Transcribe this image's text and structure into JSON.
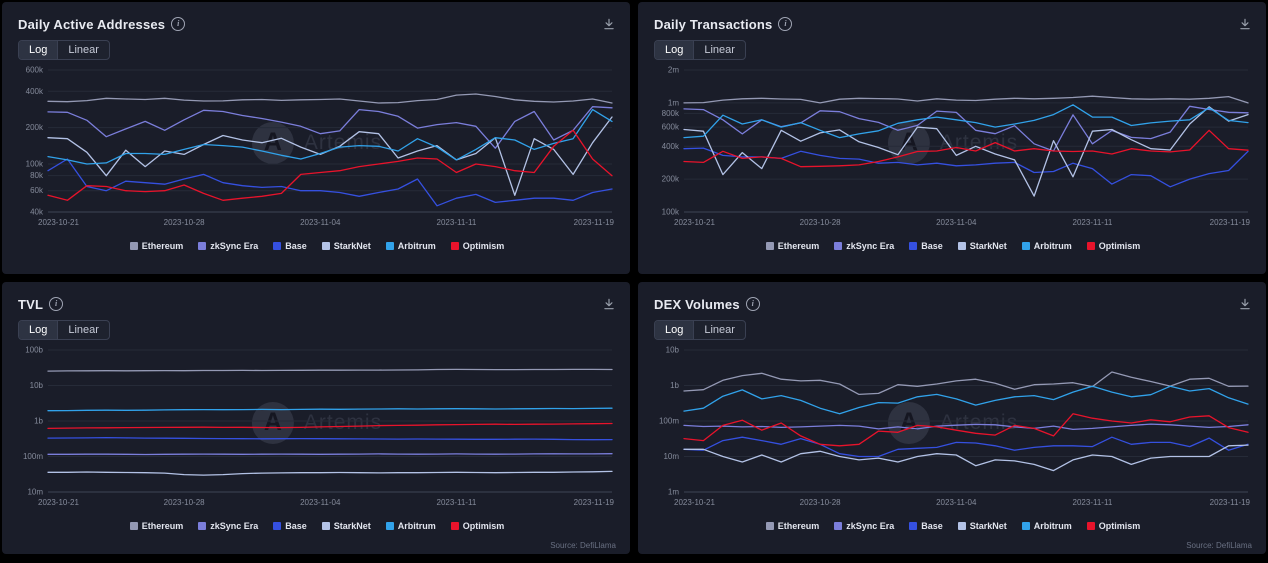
{
  "watermark": {
    "text": "Artemis"
  },
  "icons": {
    "info_glyph": "i"
  },
  "toggle": {
    "log": "Log",
    "linear": "Linear",
    "active": "Log"
  },
  "legend": {
    "position": "bottom-center",
    "items": [
      {
        "name": "Ethereum",
        "color": "#9499b4"
      },
      {
        "name": "zkSync Era",
        "color": "#7b7edb"
      },
      {
        "name": "Base",
        "color": "#3550e0"
      },
      {
        "name": "StarkNet",
        "color": "#b3c2e6"
      },
      {
        "name": "Arbitrum",
        "color": "#31a2ea"
      },
      {
        "name": "Optimism",
        "color": "#e8132b"
      }
    ]
  },
  "panels": [
    {
      "title": "Daily Active Addresses",
      "source": ""
    },
    {
      "title": "Daily Transactions",
      "source": ""
    },
    {
      "title": "TVL",
      "source": "Source: DefiLlama"
    },
    {
      "title": "DEX Volumes",
      "source": "Source: DefiLlama"
    }
  ],
  "dates": [
    "2023-10-21",
    "2023-10-22",
    "2023-10-23",
    "2023-10-24",
    "2023-10-25",
    "2023-10-26",
    "2023-10-27",
    "2023-10-28",
    "2023-10-29",
    "2023-10-30",
    "2023-10-31",
    "2023-11-01",
    "2023-11-02",
    "2023-11-03",
    "2023-11-04",
    "2023-11-05",
    "2023-11-06",
    "2023-11-07",
    "2023-11-08",
    "2023-11-09",
    "2023-11-10",
    "2023-11-11",
    "2023-11-12",
    "2023-11-13",
    "2023-11-14",
    "2023-11-15",
    "2023-11-16",
    "2023-11-17",
    "2023-11-18",
    "2023-11-19"
  ],
  "chart_data": [
    {
      "type": "line",
      "title": "Daily Active Addresses",
      "yscale": "log",
      "grid": true,
      "unit_scale": 1000,
      "y_ticks": [
        {
          "label": "600k",
          "value": 600000
        },
        {
          "label": "400k",
          "value": 400000
        },
        {
          "label": "200k",
          "value": 200000
        },
        {
          "label": "100k",
          "value": 100000
        },
        {
          "label": "80k",
          "value": 80000
        },
        {
          "label": "60k",
          "value": 60000
        },
        {
          "label": "40k",
          "value": 40000
        }
      ],
      "x_ticks": [
        {
          "i": 0,
          "label": "2023-10-21"
        },
        {
          "i": 7,
          "label": "2023-10-28"
        },
        {
          "i": 14,
          "label": "2023-11-04"
        },
        {
          "i": 21,
          "label": "2023-11-11"
        },
        {
          "i": 29,
          "label": "2023-11-19"
        }
      ],
      "series": [
        {
          "name": "Ethereum",
          "values": [
            330,
            328,
            335,
            350,
            345,
            342,
            350,
            338,
            332,
            333,
            340,
            342,
            336,
            340,
            342,
            345,
            332,
            320,
            322,
            335,
            342,
            372,
            380,
            362,
            340,
            330,
            326,
            332,
            345,
            320
          ]
        },
        {
          "name": "zkSync Era",
          "values": [
            270,
            268,
            230,
            168,
            195,
            225,
            190,
            232,
            278,
            272,
            252,
            238,
            222,
            205,
            178,
            188,
            282,
            272,
            248,
            198,
            212,
            220,
            205,
            135,
            225,
            272,
            158,
            190,
            298,
            292
          ]
        },
        {
          "name": "Base",
          "values": [
            88,
            110,
            65,
            60,
            72,
            70,
            68,
            75,
            82,
            70,
            66,
            64,
            65,
            60,
            60,
            58,
            54,
            58,
            62,
            75,
            45,
            52,
            56,
            48,
            50,
            52,
            52,
            50,
            58,
            62
          ]
        },
        {
          "name": "StarkNet",
          "values": [
            165,
            162,
            125,
            80,
            130,
            95,
            128,
            120,
            145,
            172,
            158,
            150,
            163,
            138,
            120,
            140,
            185,
            178,
            112,
            128,
            142,
            108,
            122,
            165,
            55,
            162,
            132,
            82,
            150,
            245
          ]
        },
        {
          "name": "Arbitrum",
          "values": [
            115,
            108,
            100,
            102,
            122,
            122,
            120,
            132,
            145,
            142,
            138,
            128,
            118,
            110,
            122,
            138,
            142,
            140,
            128,
            162,
            138,
            108,
            132,
            165,
            158,
            132,
            148,
            162,
            282,
            225
          ]
        },
        {
          "name": "Optimism",
          "values": [
            55,
            50,
            66,
            65,
            60,
            59,
            60,
            67,
            57,
            50,
            52,
            54,
            57,
            82,
            85,
            88,
            95,
            100,
            105,
            112,
            110,
            85,
            100,
            95,
            88,
            85,
            140,
            190,
            110,
            80
          ]
        }
      ]
    },
    {
      "type": "line",
      "title": "Daily Transactions",
      "yscale": "log",
      "grid": true,
      "unit_scale": 1000,
      "y_ticks": [
        {
          "label": "2m",
          "value": 2000000
        },
        {
          "label": "1m",
          "value": 1000000
        },
        {
          "label": "800k",
          "value": 800000
        },
        {
          "label": "600k",
          "value": 600000
        },
        {
          "label": "400k",
          "value": 400000
        },
        {
          "label": "200k",
          "value": 200000
        },
        {
          "label": "100k",
          "value": 100000
        }
      ],
      "x_ticks": [
        {
          "i": 0,
          "label": "2023-10-21"
        },
        {
          "i": 7,
          "label": "2023-10-28"
        },
        {
          "i": 14,
          "label": "2023-11-04"
        },
        {
          "i": 21,
          "label": "2023-11-11"
        },
        {
          "i": 29,
          "label": "2023-11-19"
        }
      ],
      "series": [
        {
          "name": "Ethereum",
          "values": [
            1000,
            1005,
            1060,
            1090,
            1100,
            1085,
            1075,
            1000,
            1080,
            1100,
            1095,
            1085,
            1040,
            1090,
            1060,
            1050,
            1080,
            1100,
            1090,
            1100,
            1120,
            1150,
            1120,
            1090,
            1080,
            1090,
            1080,
            1100,
            1140,
            1000
          ]
        },
        {
          "name": "zkSync Era",
          "values": [
            880,
            868,
            700,
            520,
            700,
            605,
            655,
            845,
            830,
            718,
            662,
            560,
            622,
            840,
            818,
            560,
            522,
            618,
            422,
            362,
            778,
            422,
            558,
            482,
            470,
            540,
            930,
            870,
            820,
            810
          ]
        },
        {
          "name": "Base",
          "values": [
            380,
            385,
            330,
            320,
            320,
            310,
            360,
            330,
            310,
            305,
            280,
            285,
            270,
            280,
            265,
            270,
            280,
            285,
            230,
            235,
            280,
            250,
            180,
            220,
            215,
            170,
            200,
            225,
            240,
            360
          ]
        },
        {
          "name": "StarkNet",
          "values": [
            570,
            550,
            220,
            350,
            250,
            560,
            445,
            530,
            565,
            440,
            390,
            335,
            600,
            580,
            330,
            400,
            340,
            300,
            140,
            450,
            210,
            550,
            570,
            460,
            380,
            370,
            640,
            920,
            680,
            780
          ]
        },
        {
          "name": "Arbitrum",
          "values": [
            480,
            495,
            770,
            640,
            700,
            600,
            660,
            560,
            480,
            520,
            555,
            650,
            700,
            740,
            700,
            660,
            600,
            640,
            690,
            780,
            960,
            740,
            740,
            620,
            655,
            680,
            700,
            900,
            690,
            660
          ]
        },
        {
          "name": "Optimism",
          "values": [
            290,
            285,
            360,
            310,
            320,
            310,
            260,
            262,
            265,
            270,
            290,
            320,
            358,
            362,
            390,
            362,
            432,
            362,
            380,
            362,
            358,
            362,
            340,
            380,
            362,
            355,
            370,
            560,
            380,
            368
          ]
        }
      ]
    },
    {
      "type": "line",
      "title": "TVL",
      "yscale": "log",
      "grid": true,
      "unit_scale": 1000000,
      "y_ticks": [
        {
          "label": "100b",
          "value": 100000000000
        },
        {
          "label": "10b",
          "value": 10000000000
        },
        {
          "label": "1b",
          "value": 1000000000
        },
        {
          "label": "100m",
          "value": 100000000
        },
        {
          "label": "10m",
          "value": 10000000
        }
      ],
      "x_ticks": [
        {
          "i": 0,
          "label": "2023-10-21"
        },
        {
          "i": 7,
          "label": "2023-10-28"
        },
        {
          "i": 14,
          "label": "2023-11-04"
        },
        {
          "i": 21,
          "label": "2023-11-11"
        },
        {
          "i": 29,
          "label": "2023-11-19"
        }
      ],
      "series": [
        {
          "name": "Ethereum",
          "values": [
            25500,
            25800,
            26000,
            26200,
            26000,
            26100,
            26300,
            26200,
            26400,
            26500,
            26600,
            26500,
            26700,
            26800,
            27000,
            27000,
            27200,
            27100,
            27300,
            27500,
            28200,
            28400,
            28200,
            28000,
            28100,
            28200,
            28300,
            28400,
            28500,
            28300
          ]
        },
        {
          "name": "zkSync Era",
          "values": [
            115,
            115,
            116,
            116,
            115,
            114,
            115,
            116,
            117,
            116,
            115,
            116,
            117,
            116,
            115,
            116,
            117,
            118,
            117,
            116,
            117,
            118,
            117,
            116,
            117,
            118,
            119,
            118,
            118,
            120
          ]
        },
        {
          "name": "Base",
          "values": [
            330,
            332,
            335,
            340,
            335,
            330,
            328,
            325,
            322,
            320,
            318,
            315,
            318,
            320,
            318,
            316,
            314,
            312,
            310,
            312,
            310,
            308,
            306,
            305,
            308,
            310,
            305,
            300,
            298,
            300
          ]
        },
        {
          "name": "StarkNet",
          "values": [
            36,
            36,
            36.5,
            36,
            35.5,
            35,
            34,
            31,
            30,
            31,
            33,
            34,
            34.5,
            35,
            35,
            35.5,
            35,
            34.5,
            35,
            35,
            35.5,
            36,
            35.5,
            35,
            35.5,
            36,
            36,
            36.5,
            37,
            38
          ]
        },
        {
          "name": "Arbitrum",
          "values": [
            1950,
            1960,
            2000,
            2020,
            2000,
            2010,
            2050,
            2080,
            2100,
            2080,
            2100,
            2120,
            2100,
            2120,
            2150,
            2140,
            2160,
            2180,
            2200,
            2180,
            2200,
            2220,
            2200,
            2180,
            2200,
            2220,
            2250,
            2240,
            2260,
            2300
          ]
        },
        {
          "name": "Optimism",
          "values": [
            620,
            630,
            640,
            645,
            650,
            655,
            660,
            665,
            670,
            660,
            665,
            655,
            650,
            660,
            680,
            700,
            720,
            740,
            750,
            760,
            780,
            790,
            800,
            810,
            800,
            810,
            820,
            830,
            840,
            850
          ]
        }
      ]
    },
    {
      "type": "line",
      "title": "DEX Volumes",
      "yscale": "log",
      "grid": true,
      "unit_scale": 1000000,
      "y_ticks": [
        {
          "label": "10b",
          "value": 10000000000
        },
        {
          "label": "1b",
          "value": 1000000000
        },
        {
          "label": "100m",
          "value": 100000000
        },
        {
          "label": "10m",
          "value": 10000000
        },
        {
          "label": "1m",
          "value": 1000000
        }
      ],
      "x_ticks": [
        {
          "i": 0,
          "label": "2023-10-21"
        },
        {
          "i": 7,
          "label": "2023-10-28"
        },
        {
          "i": 14,
          "label": "2023-11-04"
        },
        {
          "i": 21,
          "label": "2023-11-11"
        },
        {
          "i": 29,
          "label": "2023-11-19"
        }
      ],
      "series": [
        {
          "name": "Ethereum",
          "values": [
            700,
            760,
            1400,
            1900,
            2200,
            1500,
            1350,
            1400,
            1100,
            560,
            600,
            1050,
            950,
            1100,
            1350,
            1500,
            1150,
            780,
            1050,
            1100,
            1200,
            930,
            2400,
            1700,
            1300,
            960,
            1500,
            1600,
            950,
            960
          ]
        },
        {
          "name": "zkSync Era",
          "values": [
            75,
            70,
            72,
            68,
            70,
            66,
            68,
            72,
            75,
            72,
            60,
            68,
            60,
            72,
            76,
            80,
            78,
            68,
            62,
            72,
            58,
            62,
            68,
            75,
            82,
            78,
            72,
            66,
            70,
            78
          ]
        },
        {
          "name": "Base",
          "values": [
            16,
            15,
            28,
            35,
            28,
            22,
            32,
            22,
            12,
            10,
            10,
            16,
            17,
            18,
            25,
            24,
            20,
            15,
            18,
            20,
            20,
            19,
            35,
            22,
            25,
            25,
            19,
            33,
            15,
            22
          ]
        },
        {
          "name": "StarkNet",
          "values": [
            16,
            16,
            10,
            7,
            11,
            7,
            12,
            14,
            10,
            8,
            9,
            7,
            10,
            12,
            11,
            5.5,
            8,
            7.5,
            6,
            4,
            8,
            11,
            10,
            6,
            9,
            10,
            10,
            10,
            20,
            21
          ]
        },
        {
          "name": "Arbitrum",
          "values": [
            190,
            230,
            500,
            750,
            420,
            520,
            380,
            230,
            160,
            240,
            330,
            320,
            480,
            560,
            420,
            280,
            380,
            480,
            520,
            400,
            650,
            950,
            650,
            480,
            550,
            950,
            700,
            820,
            450,
            300
          ]
        },
        {
          "name": "Optimism",
          "values": [
            32,
            28,
            75,
            105,
            55,
            88,
            38,
            22,
            20,
            22,
            52,
            48,
            75,
            68,
            55,
            45,
            40,
            75,
            62,
            38,
            160,
            120,
            100,
            88,
            108,
            95,
            130,
            140,
            65,
            48
          ]
        }
      ]
    }
  ]
}
